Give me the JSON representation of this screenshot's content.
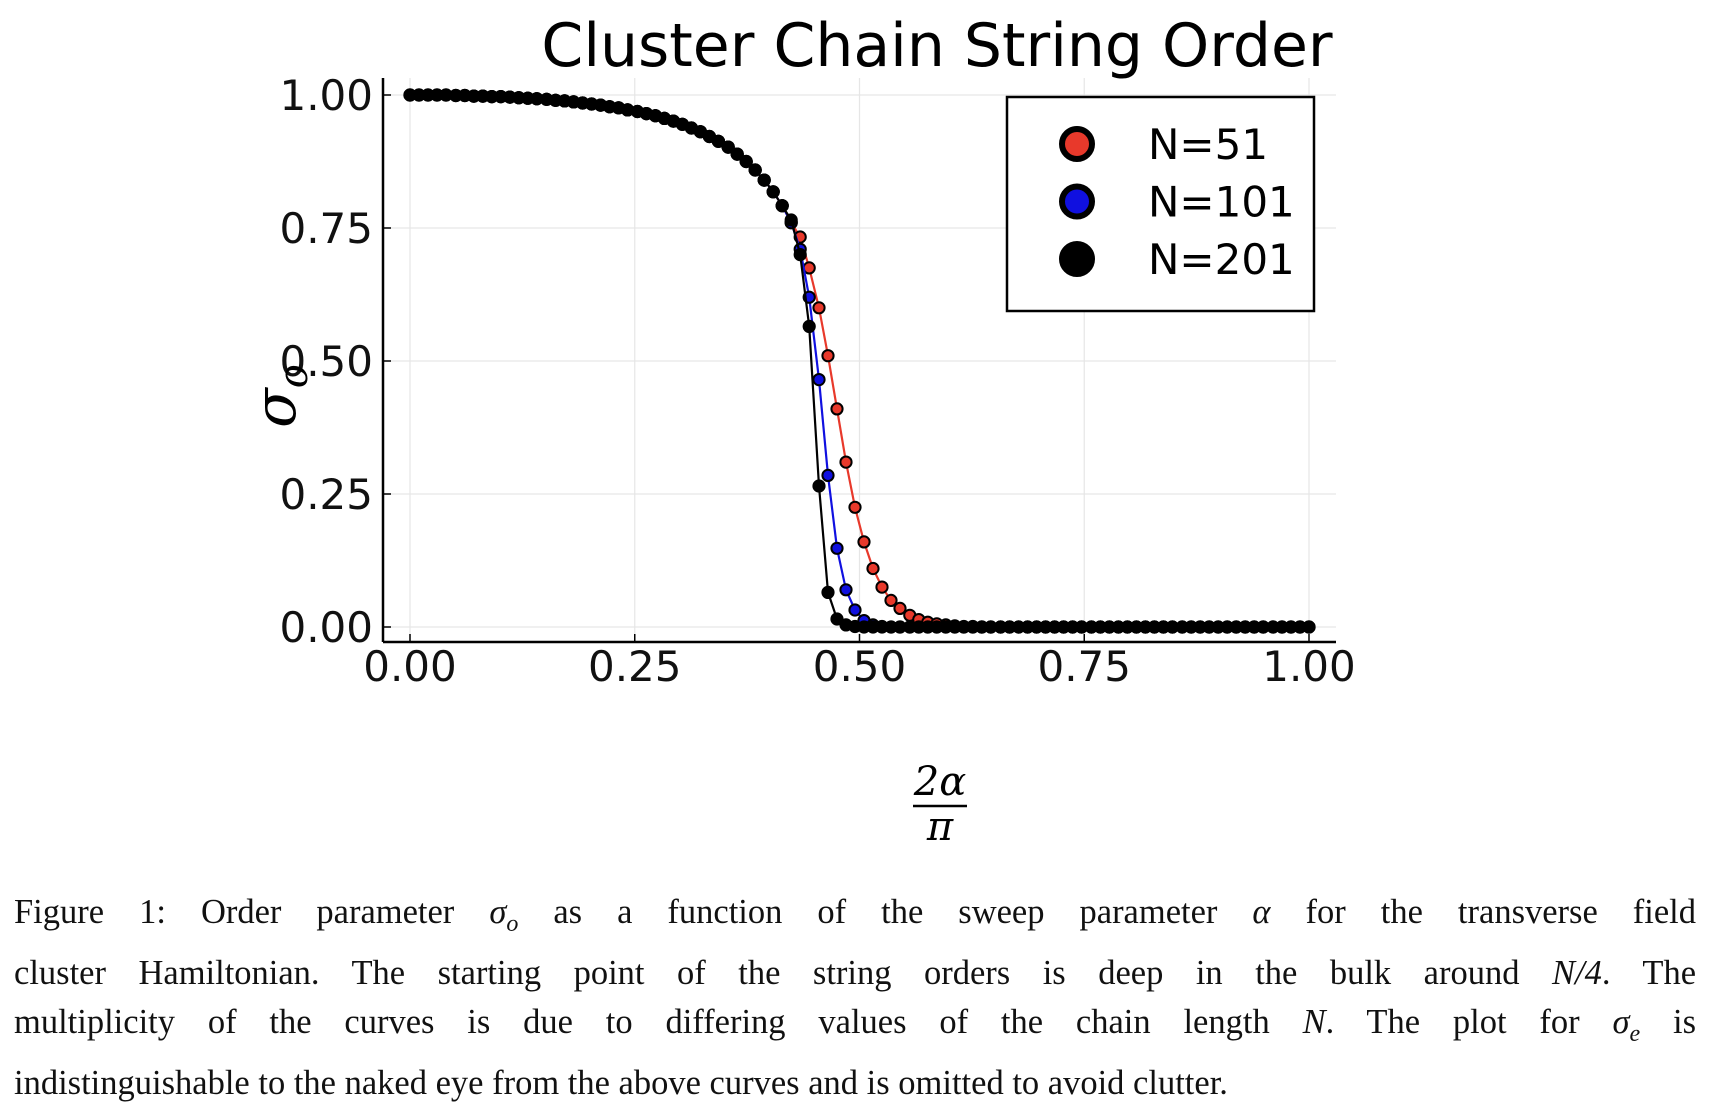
{
  "chart_data": {
    "type": "scatter",
    "title": "Cluster Chain String Order",
    "xlabel": "2α/π",
    "xlabel_numerator": "2α",
    "xlabel_denominator": "π",
    "ylabel": "σo",
    "ylabel_symbol": "σ",
    "ylabel_subscript": "o",
    "xlim": [
      -0.03,
      1.03
    ],
    "ylim": [
      -0.03,
      1.03
    ],
    "xticks": [
      0.0,
      0.25,
      0.5,
      0.75,
      1.0
    ],
    "xtick_labels": [
      "0.00",
      "0.25",
      "0.50",
      "0.75",
      "1.00"
    ],
    "yticks": [
      0.0,
      0.25,
      0.5,
      0.75,
      1.0
    ],
    "ytick_labels": [
      "0.00",
      "0.25",
      "0.50",
      "0.75",
      "1.00"
    ],
    "grid": true,
    "legend_position": "top-right",
    "series": [
      {
        "name": "N=51",
        "color": "#e8392b",
        "x": [
          0.0,
          0.01,
          0.02,
          0.03,
          0.04,
          0.051,
          0.061,
          0.071,
          0.081,
          0.091,
          0.101,
          0.111,
          0.121,
          0.131,
          0.141,
          0.152,
          0.162,
          0.172,
          0.182,
          0.192,
          0.202,
          0.212,
          0.222,
          0.232,
          0.242,
          0.253,
          0.263,
          0.273,
          0.283,
          0.293,
          0.303,
          0.313,
          0.323,
          0.333,
          0.343,
          0.354,
          0.364,
          0.374,
          0.384,
          0.394,
          0.404,
          0.414,
          0.424,
          0.434,
          0.444,
          0.455,
          0.465,
          0.475,
          0.485,
          0.495,
          0.505,
          0.515,
          0.525,
          0.535,
          0.545,
          0.556,
          0.566,
          0.576,
          0.586,
          0.596,
          0.606,
          0.616,
          0.626,
          0.636,
          0.646,
          0.657,
          0.667,
          0.677,
          0.687,
          0.697,
          0.707,
          0.717,
          0.727,
          0.737,
          0.747,
          0.758,
          0.768,
          0.778,
          0.788,
          0.798,
          0.808,
          0.818,
          0.828,
          0.838,
          0.848,
          0.859,
          0.869,
          0.879,
          0.889,
          0.899,
          0.909,
          0.919,
          0.929,
          0.939,
          0.949,
          0.96,
          0.97,
          0.98,
          0.99,
          1.0
        ],
        "y": [
          1.0,
          1.0,
          1.0,
          1.0,
          1.0,
          0.999,
          0.999,
          0.998,
          0.998,
          0.997,
          0.997,
          0.996,
          0.995,
          0.994,
          0.993,
          0.992,
          0.99,
          0.989,
          0.987,
          0.985,
          0.983,
          0.981,
          0.978,
          0.976,
          0.972,
          0.969,
          0.965,
          0.961,
          0.956,
          0.951,
          0.945,
          0.938,
          0.931,
          0.922,
          0.913,
          0.902,
          0.889,
          0.875,
          0.859,
          0.84,
          0.818,
          0.792,
          0.76,
          0.733,
          0.675,
          0.6,
          0.51,
          0.41,
          0.31,
          0.225,
          0.16,
          0.11,
          0.075,
          0.05,
          0.035,
          0.022,
          0.014,
          0.009,
          0.006,
          0.004,
          0.002,
          0.001,
          0.001,
          0.0,
          0.0,
          0.0,
          0.0,
          0.0,
          0.0,
          0.0,
          0.0,
          0.0,
          0.0,
          0.0,
          0.0,
          0.0,
          0.0,
          0.0,
          0.0,
          0.0,
          0.0,
          0.0,
          0.0,
          0.0,
          0.0,
          0.0,
          0.0,
          0.0,
          0.0,
          0.0,
          0.0,
          0.0,
          0.0,
          0.0,
          0.0,
          0.0,
          0.0,
          0.0,
          0.0,
          0.0
        ]
      },
      {
        "name": "N=101",
        "color": "#1010e0",
        "x": [
          0.0,
          0.01,
          0.02,
          0.03,
          0.04,
          0.051,
          0.061,
          0.071,
          0.081,
          0.091,
          0.101,
          0.111,
          0.121,
          0.131,
          0.141,
          0.152,
          0.162,
          0.172,
          0.182,
          0.192,
          0.202,
          0.212,
          0.222,
          0.232,
          0.242,
          0.253,
          0.263,
          0.273,
          0.283,
          0.293,
          0.303,
          0.313,
          0.323,
          0.333,
          0.343,
          0.354,
          0.364,
          0.374,
          0.384,
          0.394,
          0.404,
          0.414,
          0.424,
          0.434,
          0.444,
          0.455,
          0.465,
          0.475,
          0.485,
          0.495,
          0.505,
          0.515,
          0.525,
          0.535,
          0.545,
          0.556,
          0.566,
          0.576,
          0.586,
          0.596,
          0.606,
          0.616,
          0.626,
          0.636,
          0.646,
          0.657,
          0.667,
          0.677,
          0.687,
          0.697,
          0.707,
          0.717,
          0.727,
          0.737,
          0.747,
          0.758,
          0.768,
          0.778,
          0.788,
          0.798,
          0.808,
          0.818,
          0.828,
          0.838,
          0.848,
          0.859,
          0.869,
          0.879,
          0.889,
          0.899,
          0.909,
          0.919,
          0.929,
          0.939,
          0.949,
          0.96,
          0.97,
          0.98,
          0.99,
          1.0
        ],
        "y": [
          1.0,
          1.0,
          1.0,
          1.0,
          1.0,
          0.999,
          0.999,
          0.998,
          0.998,
          0.997,
          0.997,
          0.996,
          0.995,
          0.994,
          0.993,
          0.992,
          0.99,
          0.989,
          0.987,
          0.985,
          0.983,
          0.981,
          0.978,
          0.976,
          0.972,
          0.969,
          0.965,
          0.961,
          0.956,
          0.951,
          0.945,
          0.938,
          0.931,
          0.922,
          0.913,
          0.902,
          0.889,
          0.875,
          0.859,
          0.84,
          0.818,
          0.792,
          0.76,
          0.71,
          0.62,
          0.465,
          0.285,
          0.148,
          0.07,
          0.032,
          0.012,
          0.004,
          0.001,
          0.0,
          0.0,
          0.0,
          0.0,
          0.0,
          0.0,
          0.0,
          0.0,
          0.0,
          0.0,
          0.0,
          0.0,
          0.0,
          0.0,
          0.0,
          0.0,
          0.0,
          0.0,
          0.0,
          0.0,
          0.0,
          0.0,
          0.0,
          0.0,
          0.0,
          0.0,
          0.0,
          0.0,
          0.0,
          0.0,
          0.0,
          0.0,
          0.0,
          0.0,
          0.0,
          0.0,
          0.0,
          0.0,
          0.0,
          0.0,
          0.0,
          0.0,
          0.0,
          0.0,
          0.0,
          0.0,
          0.0
        ]
      },
      {
        "name": "N=201",
        "color": "#000000",
        "x": [
          0.0,
          0.01,
          0.02,
          0.03,
          0.04,
          0.051,
          0.061,
          0.071,
          0.081,
          0.091,
          0.101,
          0.111,
          0.121,
          0.131,
          0.141,
          0.152,
          0.162,
          0.172,
          0.182,
          0.192,
          0.202,
          0.212,
          0.222,
          0.232,
          0.242,
          0.253,
          0.263,
          0.273,
          0.283,
          0.293,
          0.303,
          0.313,
          0.323,
          0.333,
          0.343,
          0.354,
          0.364,
          0.374,
          0.384,
          0.394,
          0.404,
          0.414,
          0.424,
          0.434,
          0.444,
          0.455,
          0.465,
          0.475,
          0.485,
          0.495,
          0.505,
          0.515,
          0.525,
          0.535,
          0.545,
          0.556,
          0.566,
          0.576,
          0.586,
          0.596,
          0.606,
          0.616,
          0.626,
          0.636,
          0.646,
          0.657,
          0.667,
          0.677,
          0.687,
          0.697,
          0.707,
          0.717,
          0.727,
          0.737,
          0.747,
          0.758,
          0.768,
          0.778,
          0.788,
          0.798,
          0.808,
          0.818,
          0.828,
          0.838,
          0.848,
          0.859,
          0.869,
          0.879,
          0.889,
          0.899,
          0.909,
          0.919,
          0.929,
          0.939,
          0.949,
          0.96,
          0.97,
          0.98,
          0.99,
          1.0
        ],
        "y": [
          1.0,
          1.0,
          1.0,
          1.0,
          1.0,
          0.999,
          0.999,
          0.998,
          0.998,
          0.997,
          0.997,
          0.996,
          0.995,
          0.994,
          0.993,
          0.992,
          0.99,
          0.989,
          0.987,
          0.985,
          0.983,
          0.981,
          0.978,
          0.976,
          0.972,
          0.969,
          0.965,
          0.961,
          0.956,
          0.951,
          0.945,
          0.938,
          0.931,
          0.922,
          0.913,
          0.902,
          0.889,
          0.875,
          0.859,
          0.84,
          0.818,
          0.792,
          0.765,
          0.7,
          0.565,
          0.265,
          0.065,
          0.015,
          0.004,
          0.001,
          0.0,
          0.0,
          0.0,
          0.0,
          0.0,
          0.0,
          0.0,
          0.0,
          0.0,
          0.0,
          0.0,
          0.0,
          0.0,
          0.0,
          0.0,
          0.0,
          0.0,
          0.0,
          0.0,
          0.0,
          0.0,
          0.0,
          0.0,
          0.0,
          0.0,
          0.0,
          0.0,
          0.0,
          0.0,
          0.0,
          0.0,
          0.0,
          0.0,
          0.0,
          0.0,
          0.0,
          0.0,
          0.0,
          0.0,
          0.0,
          0.0,
          0.0,
          0.0,
          0.0,
          0.0,
          0.0,
          0.0,
          0.0,
          0.0,
          0.0
        ]
      }
    ]
  },
  "caption": {
    "label": "Figure 1:",
    "lines": [
      [
        "Order parameter ",
        {
          "math": "σ",
          "sub": "o"
        },
        " as a function of the sweep parameter ",
        {
          "math": "α"
        },
        " for the transverse field"
      ],
      [
        "cluster Hamiltonian. The starting point of the string orders is deep in the bulk around ",
        {
          "math": "N/4"
        },
        ". The"
      ],
      [
        "multiplicity of the curves is due to differing values of the chain length ",
        {
          "math": "N"
        },
        ".  The plot for ",
        {
          "math": "σ",
          "sub": "e"
        },
        " is"
      ],
      [
        "indistinguishable to the naked eye from the above curves and is omitted to avoid clutter."
      ]
    ]
  }
}
